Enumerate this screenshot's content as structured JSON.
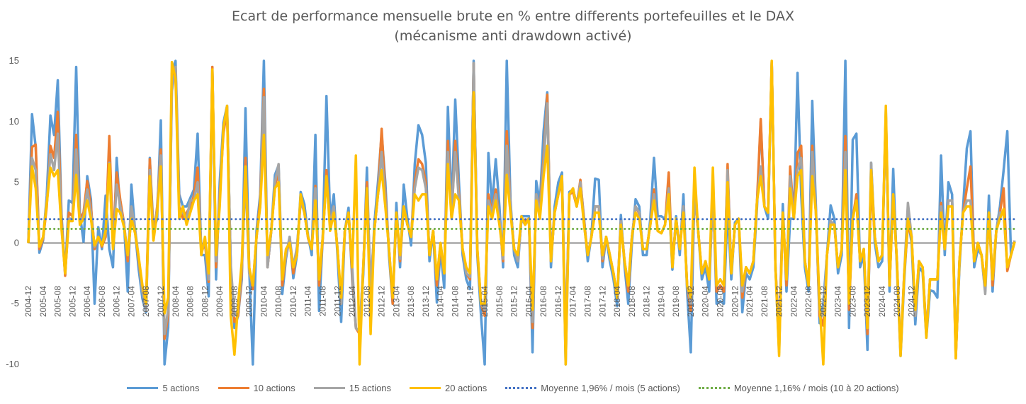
{
  "chart_data": {
    "type": "line",
    "title_line1": "Ecart de performance mensuelle brute en % entre differents portefeuilles et le DAX",
    "title_line2": "(mécanisme anti drawdown activé)",
    "ylim": [
      -10,
      15
    ],
    "yticks": [
      -10,
      -5,
      0,
      5,
      10,
      15
    ],
    "ytick_labels": [
      "-10",
      "-5",
      "0",
      "5",
      "10",
      "15"
    ],
    "grid": false,
    "legend_position": "bottom",
    "x_start": "2004-12",
    "x_end": "2024-12",
    "x_tick_labels": [
      "2004-12",
      "2005-04",
      "2005-08",
      "2005-12",
      "2006-04",
      "2006-08",
      "2006-12",
      "2007-04",
      "2007-08",
      "2007-12",
      "2008-04",
      "2008-08",
      "2008-12",
      "2009-04",
      "2009-08",
      "2009-12",
      "2010-04",
      "2010-08",
      "2010-12",
      "2011-04",
      "2011-08",
      "2011-12",
      "2012-04",
      "2012-08",
      "2012-12",
      "2013-04",
      "2013-08",
      "2013-12",
      "2014-04",
      "2014-08",
      "2014-12",
      "2015-04",
      "2015-08",
      "2015-12",
      "2016-04",
      "2016-08",
      "2016-12",
      "2017-04",
      "2017-08",
      "2017-12",
      "2018-04",
      "2018-08",
      "2018-12",
      "2019-04",
      "2019-08",
      "2019-12",
      "2020-04",
      "2020-08",
      "2020-12",
      "2021-04",
      "2021-08",
      "2021-12",
      "2022-04",
      "2022-08",
      "2022-12",
      "2023-04",
      "2023-08",
      "2023-12",
      "2024-04",
      "2024-08",
      "2024-12"
    ],
    "series": [
      {
        "name": "5 actions",
        "color": "#5B9BD5",
        "style": "solid",
        "values": [
          0.0,
          10.6,
          7.9,
          -0.8,
          0.2,
          3.9,
          10.5,
          8.9,
          13.4,
          2.4,
          -2.6,
          3.5,
          3.3,
          14.5,
          2.4,
          0.1,
          5.5,
          3.6,
          -5.0,
          1.3,
          -0.5,
          3.9,
          -0.5,
          -2.0,
          7.0,
          2.4,
          1.7,
          -4.0,
          4.8,
          1.0,
          -2.2,
          -4.6,
          -5.7,
          7.0,
          1.0,
          2.0,
          10.1,
          -10.0,
          -7.0,
          14.0,
          15.0,
          4.0,
          3.0,
          3.0,
          3.7,
          4.4,
          9.0,
          -1.0,
          -1.0,
          -4.4,
          14.5,
          -3.0,
          5.0,
          9.9,
          11.3,
          -2.0,
          -7.0,
          -6.0,
          -3.0,
          11.1,
          -2.0,
          -10.0,
          1.0,
          4.0,
          15.0,
          -2.0,
          1.0,
          5.6,
          6.4,
          -4.2,
          -1.3,
          0.5,
          -2.9,
          -1.0,
          4.2,
          3.2,
          0.6,
          -1.0,
          8.9,
          -5.6,
          0.5,
          12.1,
          2.0,
          4.0,
          -1.0,
          -6.5,
          1.0,
          2.9,
          -3.0,
          -7.0,
          -7.4,
          -2.6,
          6.2,
          -5.0,
          1.5,
          5.0,
          9.0,
          5.0,
          -1.0,
          -5.0,
          3.3,
          -2.0,
          4.8,
          2.0,
          -0.2,
          6.5,
          9.7,
          8.9,
          6.6,
          -1.5,
          1.0,
          -4.9,
          -0.5,
          -3.7,
          11.2,
          2.8,
          11.8,
          5.0,
          -1.0,
          -3.0,
          -3.8,
          15.0,
          -1.0,
          -6.0,
          -10.0,
          7.4,
          3.0,
          6.9,
          3.0,
          -2.0,
          15.0,
          3.5,
          -1.0,
          -2.0,
          2.2,
          2.2,
          2.2,
          -9.0,
          5.1,
          3.3,
          9.2,
          12.4,
          -2.0,
          3.0,
          5.0,
          5.8,
          -10.0,
          4.2,
          4.4,
          3.2,
          5.0,
          2.0,
          -1.5,
          0.6,
          5.3,
          5.2,
          -2.0,
          0.5,
          -1.5,
          -3.0,
          -5.2,
          2.3,
          -1.9,
          -5.0,
          0.0,
          3.6,
          3.0,
          -1.0,
          -1.0,
          2.0,
          7.0,
          2.2,
          2.2,
          2.0,
          4.0,
          -2.2,
          2.2,
          -1.0,
          4.0,
          -4.0,
          -9.0,
          4.5,
          1.0,
          -3.0,
          -2.0,
          -4.0,
          4.9,
          -5.0,
          -4.8,
          -5.0,
          3.0,
          -3.0,
          1.7,
          2.0,
          -5.7,
          -2.5,
          -3.0,
          -2.0,
          3.0,
          10.0,
          3.0,
          2.0,
          14.9,
          -2.0,
          -9.0,
          3.2,
          -4.0,
          2.0,
          2.0,
          14.0,
          4.0,
          -2.0,
          -4.0,
          11.7,
          3.0,
          -6.6,
          -5.0,
          -1.0,
          3.1,
          2.0,
          -2.5,
          -1.0,
          15.0,
          -7.0,
          8.5,
          9.0,
          -2.0,
          -1.0,
          -8.8,
          6.6,
          0.0,
          -2.0,
          -1.5,
          10.9,
          -4.0,
          6.1,
          -2.0,
          -9.3,
          -3.0,
          2.0,
          0.0,
          -6.7,
          -2.0,
          -2.4,
          -7.8,
          -3.9,
          -4.0,
          -4.5,
          7.2,
          -1.0,
          5.0,
          4.0,
          -9.3,
          -2.0,
          3.0,
          7.8,
          9.2,
          -2.0,
          -0.5,
          -1.0,
          -4.0,
          3.9,
          -4.0,
          1.0,
          3.0,
          6.0,
          9.2,
          -1.0,
          0.1
        ]
      },
      {
        "name": "10 actions",
        "color": "#ED7D31",
        "style": "solid",
        "values": [
          0.0,
          7.9,
          8.1,
          -0.5,
          0.3,
          3.0,
          8.0,
          7.0,
          10.8,
          2.0,
          -2.7,
          2.5,
          2.2,
          8.9,
          2.0,
          2.5,
          5.1,
          3.0,
          -0.5,
          0.5,
          -0.3,
          0.5,
          8.8,
          0.0,
          5.8,
          3.5,
          1.6,
          -1.5,
          2.5,
          1.0,
          -1.5,
          -4.0,
          -5.0,
          6.9,
          0.5,
          3.0,
          7.7,
          -7.9,
          -6.0,
          13.0,
          14.5,
          3.0,
          2.0,
          2.5,
          3.0,
          3.9,
          6.2,
          -0.8,
          0.0,
          -3.2,
          14.5,
          -2.0,
          4.0,
          9.0,
          11.0,
          -2.0,
          -6.5,
          -6.0,
          -2.5,
          7.0,
          -2.0,
          -3.8,
          0.5,
          3.5,
          12.7,
          -2.0,
          1.0,
          4.6,
          6.0,
          -3.5,
          -1.0,
          0.3,
          -2.5,
          -0.5,
          3.5,
          2.6,
          0.4,
          -0.5,
          4.7,
          -3.5,
          0.3,
          6.0,
          1.5,
          3.0,
          -0.5,
          -5.0,
          1.0,
          2.5,
          -2.5,
          -7.0,
          -7.5,
          -2.0,
          5.0,
          -4.0,
          1.0,
          4.0,
          9.4,
          4.0,
          -0.5,
          -5.0,
          2.5,
          -1.5,
          3.0,
          1.5,
          0.5,
          5.0,
          6.9,
          6.5,
          5.0,
          -1.0,
          1.0,
          -3.5,
          -0.2,
          -2.5,
          8.4,
          2.0,
          8.4,
          4.0,
          -0.5,
          -2.5,
          -3.0,
          14.8,
          -0.8,
          -5.0,
          -6.0,
          4.0,
          2.5,
          4.4,
          2.0,
          -1.5,
          9.2,
          3.0,
          -0.5,
          -1.5,
          2.0,
          1.8,
          2.0,
          -7.0,
          4.0,
          2.8,
          7.0,
          12.2,
          -1.5,
          2.5,
          4.0,
          5.0,
          -8.0,
          4.0,
          4.2,
          3.0,
          5.2,
          1.8,
          -1.0,
          0.5,
          3.0,
          3.0,
          -1.5,
          0.5,
          -1.0,
          -2.5,
          -4.5,
          1.8,
          -1.5,
          -4.0,
          0.5,
          3.0,
          2.4,
          -0.5,
          -0.5,
          1.5,
          4.4,
          1.0,
          0.8,
          1.5,
          5.8,
          -2.0,
          2.0,
          -0.5,
          3.0,
          -3.5,
          -5.6,
          4.0,
          1.0,
          -2.5,
          -1.5,
          -3.0,
          4.0,
          -4.0,
          -3.5,
          -4.0,
          6.5,
          -2.5,
          1.5,
          2.0,
          -4.5,
          -2.0,
          -2.5,
          -1.5,
          3.5,
          10.2,
          3.0,
          2.5,
          14.9,
          -2.0,
          -7.5,
          2.5,
          -3.5,
          6.3,
          2.0,
          7.4,
          8.0,
          -1.5,
          -3.5,
          8.0,
          2.5,
          -6.0,
          -6.8,
          -1.0,
          1.8,
          1.5,
          -2.0,
          -0.5,
          8.8,
          -5.5,
          2.0,
          4.0,
          -1.5,
          -0.5,
          -7.5,
          5.0,
          0.5,
          -1.5,
          -1.0,
          10.6,
          -3.5,
          4.0,
          -1.5,
          -9.0,
          -2.5,
          1.5,
          0.5,
          -6.0,
          -1.5,
          -2.0,
          -7.5,
          -3.0,
          -3.0,
          -3.0,
          3.3,
          -0.5,
          3.5,
          3.5,
          -9.5,
          -1.5,
          2.5,
          4.5,
          6.3,
          -1.5,
          0.0,
          -1.0,
          -3.5,
          2.5,
          -3.5,
          1.0,
          2.5,
          4.5,
          -2.3,
          -1.0,
          0.1
        ]
      },
      {
        "name": "15 actions",
        "color": "#A5A5A5",
        "style": "solid",
        "values": [
          0.0,
          7.0,
          6.0,
          -0.3,
          0.4,
          3.5,
          7.3,
          6.0,
          9.0,
          1.5,
          -2.5,
          2.0,
          2.0,
          7.7,
          1.8,
          2.2,
          4.4,
          2.5,
          -0.3,
          0.3,
          -0.2,
          0.8,
          6.6,
          -0.3,
          4.8,
          3.0,
          1.5,
          -1.0,
          3.0,
          1.2,
          -1.3,
          -4.0,
          -5.6,
          6.0,
          0.3,
          2.8,
          7.2,
          -7.5,
          -5.5,
          12.5,
          14.5,
          2.5,
          2.5,
          2.0,
          3.5,
          3.5,
          5.0,
          -0.5,
          0.2,
          -3.0,
          14.0,
          -1.5,
          3.5,
          9.5,
          11.2,
          -1.8,
          -6.0,
          -5.5,
          -2.0,
          5.5,
          -2.5,
          -3.5,
          0.5,
          3.0,
          12.0,
          -2.0,
          1.0,
          5.0,
          6.5,
          -3.0,
          -1.0,
          0.5,
          -2.0,
          -0.3,
          3.5,
          2.5,
          0.5,
          -0.5,
          4.5,
          -3.0,
          0.5,
          5.5,
          1.5,
          3.0,
          -0.5,
          -5.0,
          1.0,
          2.5,
          -2.0,
          -7.0,
          -7.3,
          -2.0,
          4.5,
          -3.5,
          1.0,
          4.0,
          7.5,
          3.5,
          -0.5,
          -4.5,
          2.5,
          -1.3,
          3.0,
          1.5,
          0.5,
          4.5,
          6.2,
          6.0,
          4.5,
          -1.0,
          1.0,
          -3.0,
          0.0,
          -2.5,
          7.5,
          2.5,
          7.5,
          3.5,
          -0.5,
          -2.5,
          -2.8,
          14.8,
          -0.5,
          -5.0,
          -5.5,
          3.5,
          2.5,
          4.0,
          2.0,
          -1.3,
          8.0,
          3.0,
          -0.5,
          -1.5,
          2.0,
          1.5,
          2.0,
          -6.5,
          4.0,
          2.5,
          6.5,
          11.5,
          -1.5,
          2.5,
          4.0,
          5.5,
          -8.0,
          4.0,
          4.5,
          3.0,
          5.0,
          1.5,
          -1.0,
          0.5,
          3.0,
          3.0,
          -1.3,
          0.5,
          -1.0,
          -2.5,
          -4.5,
          1.8,
          -1.5,
          -3.5,
          0.5,
          3.0,
          2.5,
          -0.5,
          -0.5,
          1.5,
          4.0,
          1.0,
          0.8,
          1.5,
          4.5,
          -2.0,
          2.0,
          -0.5,
          3.0,
          -3.5,
          -5.0,
          4.0,
          1.0,
          -2.5,
          -1.5,
          -3.0,
          4.0,
          -3.5,
          -3.0,
          -3.5,
          6.0,
          -2.5,
          1.5,
          2.0,
          -4.0,
          -2.0,
          -2.5,
          -1.5,
          3.5,
          6.3,
          3.0,
          2.5,
          14.8,
          -2.0,
          -8.0,
          2.5,
          -3.0,
          5.5,
          2.0,
          6.0,
          7.0,
          -1.5,
          -3.5,
          7.5,
          2.5,
          -5.5,
          -6.0,
          -1.0,
          1.8,
          1.5,
          -2.0,
          -0.5,
          7.5,
          -5.0,
          2.0,
          3.5,
          -1.5,
          -0.5,
          -7.0,
          6.6,
          0.5,
          -1.5,
          -1.0,
          10.5,
          -3.5,
          4.0,
          -1.5,
          -9.0,
          -2.5,
          3.3,
          0.5,
          -6.0,
          -1.5,
          -2.0,
          -7.5,
          -3.0,
          -3.0,
          -3.0,
          3.0,
          -0.5,
          3.5,
          3.5,
          -9.0,
          -1.5,
          2.5,
          3.5,
          3.5,
          -1.5,
          0.0,
          -1.0,
          -4.2,
          2.5,
          -3.0,
          1.0,
          2.5,
          2.5,
          -2.0,
          -1.0,
          0.2
        ]
      },
      {
        "name": "20 actions",
        "color": "#FFC000",
        "style": "solid",
        "values": [
          0.0,
          6.3,
          4.5,
          -0.3,
          0.5,
          3.2,
          6.2,
          5.5,
          6.0,
          1.2,
          -2.5,
          1.8,
          1.8,
          5.6,
          1.5,
          2.0,
          3.5,
          2.0,
          -0.2,
          0.5,
          -0.2,
          1.0,
          6.5,
          -0.5,
          2.8,
          2.5,
          1.3,
          -1.0,
          2.0,
          0.8,
          -1.2,
          -3.5,
          -5.0,
          5.5,
          0.2,
          2.5,
          6.3,
          -5.8,
          -4.5,
          14.9,
          13.5,
          2.0,
          3.0,
          1.5,
          2.5,
          3.5,
          4.0,
          -1.0,
          0.5,
          -2.5,
          14.3,
          -1.0,
          3.0,
          9.5,
          11.3,
          -6.0,
          -9.2,
          -5.0,
          -1.5,
          6.3,
          -2.0,
          -3.5,
          0.5,
          3.0,
          8.9,
          -1.0,
          1.0,
          4.5,
          5.0,
          -3.0,
          -0.5,
          0.0,
          -2.0,
          -1.0,
          4.0,
          2.5,
          0.5,
          -0.5,
          3.5,
          -3.0,
          0.5,
          5.5,
          1.0,
          2.5,
          -0.5,
          -4.5,
          1.0,
          2.5,
          -2.0,
          7.2,
          -10.0,
          -2.0,
          4.5,
          -7.5,
          1.0,
          4.0,
          6.0,
          3.0,
          -0.5,
          -4.5,
          2.5,
          -1.0,
          3.0,
          1.5,
          0.5,
          4.0,
          3.5,
          4.0,
          4.0,
          -1.0,
          1.0,
          -3.0,
          0.0,
          -2.5,
          6.5,
          2.0,
          4.0,
          3.5,
          -0.5,
          -2.0,
          -2.5,
          12.4,
          -0.5,
          -5.0,
          -5.0,
          3.0,
          2.0,
          3.5,
          1.5,
          -1.0,
          5.6,
          2.5,
          -0.5,
          -1.0,
          2.2,
          1.5,
          2.0,
          -5.5,
          3.5,
          2.0,
          5.5,
          8.0,
          -1.5,
          2.5,
          4.0,
          5.5,
          -10.0,
          4.0,
          4.5,
          3.0,
          4.5,
          1.5,
          -1.0,
          0.5,
          2.5,
          2.5,
          -1.0,
          0.5,
          -1.0,
          -2.5,
          -4.5,
          1.5,
          -1.5,
          -3.5,
          0.5,
          2.5,
          2.0,
          -0.5,
          -0.5,
          1.5,
          3.5,
          1.0,
          0.8,
          1.5,
          4.0,
          -2.0,
          2.0,
          -0.5,
          2.5,
          -3.5,
          -4.5,
          6.2,
          1.0,
          -2.5,
          -1.5,
          -3.0,
          6.2,
          -3.5,
          -3.0,
          -3.5,
          5.0,
          -2.5,
          1.5,
          2.0,
          -3.5,
          -2.0,
          -2.5,
          -1.5,
          3.5,
          5.5,
          3.0,
          2.5,
          15.0,
          -2.0,
          -9.3,
          2.5,
          -3.0,
          4.5,
          2.0,
          5.5,
          6.0,
          -1.5,
          -3.5,
          5.5,
          2.5,
          -5.0,
          -10.0,
          -1.0,
          1.5,
          1.5,
          -2.0,
          -0.5,
          6.0,
          -5.0,
          2.0,
          3.5,
          -1.5,
          -0.5,
          -7.0,
          6.0,
          0.5,
          -1.5,
          -1.0,
          11.3,
          -3.5,
          4.0,
          -1.5,
          -9.3,
          -2.5,
          2.0,
          0.5,
          -5.5,
          -1.5,
          -2.0,
          -7.8,
          -3.0,
          -3.0,
          -3.0,
          2.5,
          -0.5,
          3.0,
          3.0,
          -9.5,
          -1.5,
          2.5,
          3.0,
          3.0,
          -1.5,
          0.0,
          -1.0,
          -3.5,
          2.5,
          -3.0,
          1.0,
          2.0,
          2.8,
          -2.0,
          -1.0,
          0.1
        ]
      },
      {
        "name": "Moyenne 1,96% / mois (5 actions)",
        "color": "#4472C4",
        "style": "dotted",
        "constant": 1.96
      },
      {
        "name": "Moyenne 1,16% / mois (10 à 20 actions)",
        "color": "#70AD47",
        "style": "dotted",
        "constant": 1.16
      }
    ]
  }
}
